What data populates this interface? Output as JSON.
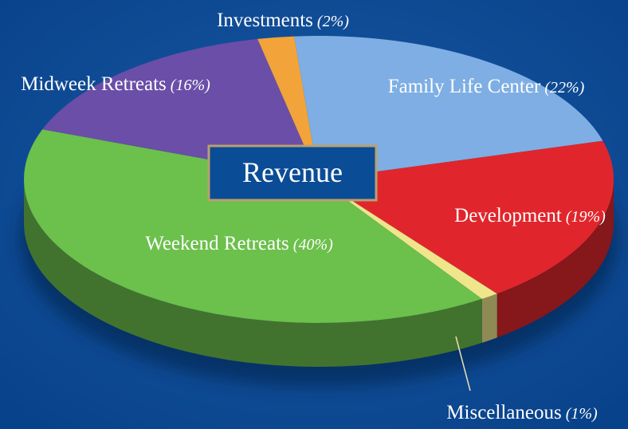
{
  "chart_data": {
    "type": "pie",
    "title": "Revenue",
    "categories": [
      "Investments",
      "Family Life Center",
      "Development",
      "Miscellaneous",
      "Weekend Retreats",
      "Midweek Retreats"
    ],
    "values": [
      2,
      22,
      19,
      1,
      40,
      16
    ],
    "value_labels": [
      "(2%)",
      "(22%)",
      "(19%)",
      "(1%)",
      "(40%)",
      "(16%)"
    ],
    "colors": [
      "#f2a33a",
      "#7eaee3",
      "#e0262c",
      "#efe58a",
      "#6cc04c",
      "#6a4ea8"
    ]
  }
}
